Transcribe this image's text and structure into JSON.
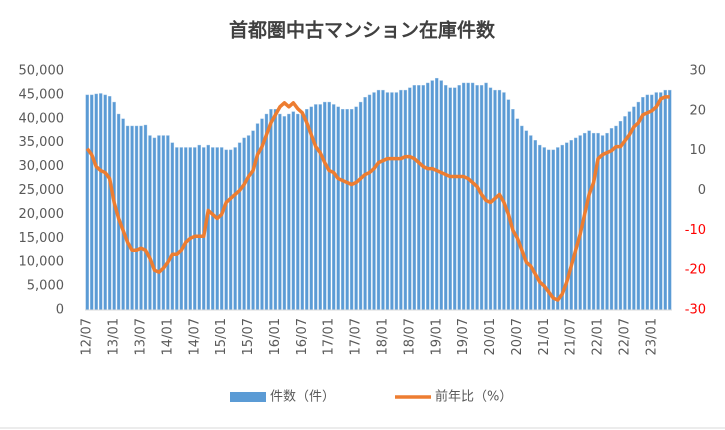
{
  "chart_data": {
    "type": "bar_line",
    "title": "首都圏中古マンション在庫件数",
    "categories": [
      "12/07",
      null,
      null,
      null,
      null,
      null,
      "13/01",
      null,
      null,
      null,
      null,
      null,
      "13/07",
      null,
      null,
      null,
      null,
      null,
      "14/01",
      null,
      null,
      null,
      null,
      null,
      "14/07",
      null,
      null,
      null,
      null,
      null,
      "15/01",
      null,
      null,
      null,
      null,
      null,
      "15/07",
      null,
      null,
      null,
      null,
      null,
      "16/01",
      null,
      null,
      null,
      null,
      null,
      "16/07",
      null,
      null,
      null,
      null,
      null,
      "17/01",
      null,
      null,
      null,
      null,
      null,
      "17/07",
      null,
      null,
      null,
      null,
      null,
      "18/01",
      null,
      null,
      null,
      null,
      null,
      "18/07",
      null,
      null,
      null,
      null,
      null,
      "19/01",
      null,
      null,
      null,
      null,
      null,
      "19/07",
      null,
      null,
      null,
      null,
      null,
      "20/01",
      null,
      null,
      null,
      null,
      null,
      "20/07",
      null,
      null,
      null,
      null,
      null,
      "21/01",
      null,
      null,
      null,
      null,
      null,
      "21/07",
      null,
      null,
      null,
      null,
      null,
      "22/01",
      null,
      null,
      null,
      null,
      null,
      "22/07",
      null,
      null,
      null,
      null,
      null,
      "23/01",
      null,
      null,
      null,
      null
    ],
    "series": [
      {
        "name": "件数（件）",
        "color": "#5b9bd5",
        "values": [
          45000,
          45000,
          45200,
          45300,
          45000,
          44700,
          43500,
          41000,
          40000,
          38500,
          38500,
          38500,
          38500,
          38700,
          36500,
          36000,
          36500,
          36500,
          36500,
          35000,
          34000,
          34000,
          34000,
          34000,
          34000,
          34500,
          34000,
          34500,
          34000,
          34000,
          34000,
          33500,
          33500,
          34000,
          35000,
          36000,
          36500,
          37500,
          39000,
          40000,
          41000,
          42000,
          42000,
          41000,
          40500,
          41000,
          41500,
          41000,
          41000,
          42000,
          42500,
          43000,
          43000,
          43500,
          43500,
          43000,
          42500,
          42000,
          42000,
          42000,
          42500,
          43500,
          44500,
          45000,
          45500,
          46000,
          46000,
          45500,
          45500,
          45500,
          46000,
          46000,
          46500,
          47000,
          47000,
          47000,
          47500,
          48000,
          48500,
          48000,
          47000,
          46500,
          46500,
          47000,
          47500,
          47500,
          47500,
          47000,
          47000,
          47500,
          46500,
          46000,
          46000,
          45500,
          44000,
          42000,
          40000,
          38500,
          37500,
          36500,
          35500,
          34500,
          34000,
          33500,
          33500,
          34000,
          34500,
          35000,
          35500,
          36000,
          36500,
          37000,
          37500,
          37000,
          37000,
          36500,
          37000,
          38000,
          38500,
          39500,
          40500,
          41500,
          42500,
          43500,
          44500,
          45000,
          45000,
          45500,
          45500,
          46000,
          46000
        ]
      },
      {
        "name": "前年比（%）",
        "color": "#ed7d31",
        "axis": "y2",
        "values": [
          10.5,
          9,
          6,
          5,
          4.5,
          3,
          -3,
          -7,
          -10,
          -13,
          -15,
          -15,
          -14.5,
          -15,
          -17,
          -20,
          -20.5,
          -19.5,
          -18,
          -16,
          -16,
          -15,
          -13,
          -12,
          -11.5,
          -11.5,
          -11.5,
          -5,
          -6,
          -7,
          -6,
          -3,
          -2,
          -1,
          0,
          1.5,
          3.5,
          5,
          9,
          11,
          14,
          17,
          19,
          21,
          22,
          21,
          22,
          20.5,
          19.5,
          17,
          14,
          11,
          9.5,
          7,
          5,
          4.5,
          3,
          2.5,
          2,
          1.5,
          2,
          3,
          4,
          4.5,
          5.5,
          7,
          7.5,
          8,
          8,
          8,
          8,
          8.5,
          8.5,
          8,
          7,
          6,
          5.5,
          5.5,
          5,
          4.5,
          4,
          3.5,
          3.5,
          3.5,
          3.5,
          3,
          2,
          1,
          -1,
          -2.5,
          -3,
          -2,
          -1,
          -3,
          -6,
          -10,
          -12,
          -15,
          -18,
          -19,
          -21,
          -23,
          -24,
          -25.5,
          -27,
          -27.5,
          -26,
          -23,
          -19,
          -15,
          -11,
          -6,
          -1,
          2,
          8,
          9,
          9.5,
          10,
          11,
          11,
          12.5,
          14,
          16,
          17,
          19,
          19.5,
          20,
          21,
          23,
          23.5,
          23.5
        ]
      }
    ],
    "ylim": [
      0,
      50000
    ],
    "yticks": [
      0,
      {
        "value": 5000,
        "label": "5,000"
      },
      {
        "value": 10000,
        "label": "10,000"
      },
      {
        "value": 15000,
        "label": "15,000"
      },
      {
        "value": 20000,
        "label": "20,000"
      },
      {
        "value": 25000,
        "label": "25,000"
      },
      {
        "value": 30000,
        "label": "30,000"
      },
      {
        "value": 35000,
        "label": "35,000"
      },
      {
        "value": 40000,
        "label": "40,000"
      },
      {
        "value": 45000,
        "label": "45,000"
      },
      {
        "value": 50000,
        "label": "50,000"
      }
    ],
    "y2lim": [
      -30,
      30
    ],
    "y2ticks": [
      -30,
      -20,
      -10,
      0,
      10,
      20,
      30
    ],
    "y2_negative_color": "#ff0000",
    "legend": "bottom"
  }
}
